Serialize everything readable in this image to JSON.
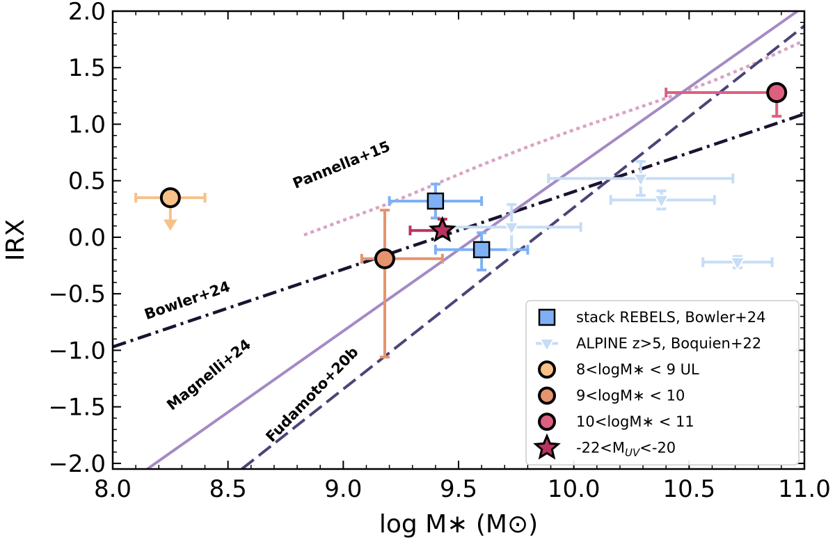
{
  "chart_data": {
    "type": "scatter",
    "xlabel": "log M∗ (M⊙)",
    "ylabel": "IRX",
    "xlim": [
      8.0,
      11.0
    ],
    "ylim": [
      -2.05,
      2.0
    ],
    "xticks": [
      "8.0",
      "8.5",
      "9.0",
      "9.5",
      "10.0",
      "10.5",
      "11.0"
    ],
    "yticks": [
      "−2.0",
      "−1.5",
      "−1.0",
      "−0.5",
      "0.0",
      "0.5",
      "1.0",
      "1.5",
      "2.0"
    ],
    "relations": [
      {
        "name": "Pannella+15",
        "label": "Pannella+15",
        "style": "dotted",
        "color": "#d9a3c4",
        "points": [
          [
            8.83,
            0.02
          ],
          [
            9.0,
            0.15
          ],
          [
            9.2,
            0.3
          ],
          [
            9.4,
            0.47
          ],
          [
            9.6,
            0.64
          ],
          [
            9.8,
            0.8
          ],
          [
            10.0,
            0.95
          ],
          [
            10.2,
            1.09
          ],
          [
            10.4,
            1.23
          ],
          [
            10.6,
            1.38
          ],
          [
            10.8,
            1.55
          ],
          [
            11.0,
            1.74
          ]
        ]
      },
      {
        "name": "Bowler+24",
        "label": "Bowler+24",
        "style": "dashdot",
        "color": "#1a1330",
        "points": [
          [
            8.0,
            -0.97
          ],
          [
            11.0,
            1.09
          ]
        ]
      },
      {
        "name": "Magnelli+24",
        "label": "Magnelli+24",
        "style": "solid",
        "color": "#a48ac4",
        "points": [
          [
            8.15,
            -2.05
          ],
          [
            10.97,
            2.0
          ]
        ]
      },
      {
        "name": "Fudamoto+20b",
        "label": "Fudamoto+20b",
        "style": "dashed",
        "color": "#4a4577",
        "points": [
          [
            8.56,
            -2.05
          ],
          [
            11.0,
            1.87
          ]
        ]
      }
    ],
    "series": [
      {
        "name": "stack REBELS, Bowler+24",
        "marker": "square",
        "color": "#7fb0f5",
        "edge": "#000000",
        "errcolor": "#7fb0f5",
        "points": [
          {
            "x": 9.4,
            "y": 0.32,
            "xerr": [
              0.2,
              0.2
            ],
            "yerr": [
              0.15,
              0.15
            ]
          },
          {
            "x": 9.6,
            "y": -0.11,
            "xerr": [
              0.2,
              0.2
            ],
            "yerr": [
              0.18,
              0.15
            ]
          }
        ]
      },
      {
        "name": "ALPINE z>5, Boquien+22",
        "marker": "triangle-down",
        "color": "#c6ddf5",
        "edge": "#ffffff",
        "errcolor": "#c6ddf5",
        "points": [
          {
            "x": 9.73,
            "y": 0.09,
            "xerr": [
              0.3,
              0.3
            ],
            "yerr": [
              0.2,
              0.2
            ]
          },
          {
            "x": 10.29,
            "y": 0.52,
            "xerr": [
              0.4,
              0.4
            ],
            "yerr": [
              0.15,
              0.15
            ]
          },
          {
            "x": 10.38,
            "y": 0.33,
            "xerr": [
              0.22,
              0.23
            ],
            "yerr": [
              0.08,
              0.08
            ]
          },
          {
            "x": 10.71,
            "y": -0.22,
            "xerr": [
              0.15,
              0.15
            ],
            "yerr": [
              0.05,
              0.05
            ]
          }
        ]
      },
      {
        "name": "8<logM∗ < 9 UL",
        "marker": "circle",
        "color": "#f7c188",
        "edge": "#000000",
        "errcolor": "#f7c188",
        "points": [
          {
            "x": 8.25,
            "y": 0.35,
            "xerr": [
              0.15,
              0.15
            ],
            "upper_limit": true
          }
        ]
      },
      {
        "name": "9<logM∗ < 10",
        "marker": "circle",
        "color": "#e5946f",
        "edge": "#000000",
        "errcolor": "#e5946f",
        "points": [
          {
            "x": 9.18,
            "y": -0.19,
            "xerr": [
              0.1,
              0.25
            ],
            "yerr": [
              0.87,
              0.43
            ]
          }
        ]
      },
      {
        "name": "10<logM∗ < 11",
        "marker": "circle",
        "color": "#dd6080",
        "edge": "#000000",
        "errcolor": "#dd6080",
        "points": [
          {
            "x": 10.88,
            "y": 1.28,
            "xerr": [
              0.48,
              0.0
            ],
            "yerr": [
              0.21,
              0.0
            ]
          }
        ]
      },
      {
        "name": "-22<M_UV<-20",
        "marker": "star",
        "color": "#b8345e",
        "edge": "#000000",
        "errcolor": "#b8345e",
        "points": [
          {
            "x": 9.43,
            "y": 0.06,
            "xerr": [
              0.14,
              0.0
            ],
            "yerr": [
              0.0,
              0.1
            ]
          }
        ]
      }
    ],
    "legend": {
      "position": "bottom-right",
      "entries": [
        "stack REBELS, Bowler+24",
        "ALPINE z>5, Boquien+22",
        "8<logM∗ < 9 UL",
        "9<logM∗ < 10",
        "10<logM∗ < 11",
        "-22<M_UV<-20"
      ]
    }
  }
}
